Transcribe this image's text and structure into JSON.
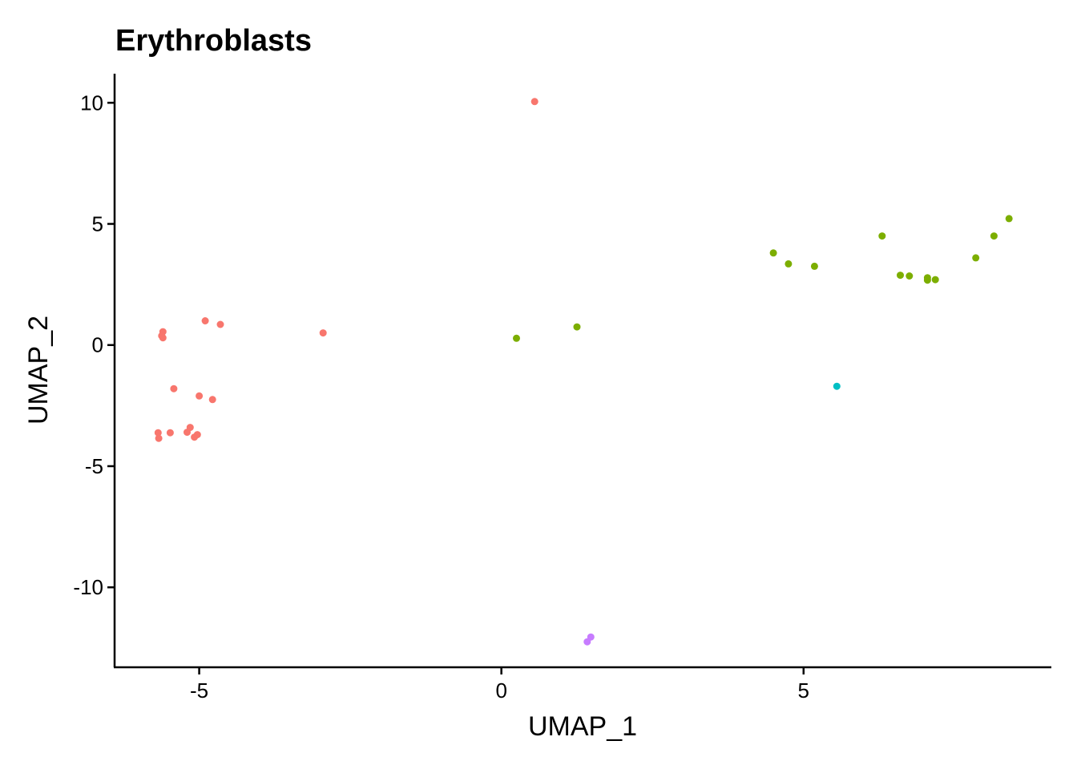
{
  "chart_data": {
    "type": "scatter",
    "title": "Erythroblasts",
    "xlabel": "UMAP_1",
    "ylabel": "UMAP_2",
    "xlim": [
      -6.4,
      9.1
    ],
    "ylim": [
      -13.3,
      11.2
    ],
    "x_ticks": [
      -5,
      0,
      5
    ],
    "x_tick_labels": [
      "-5",
      "0",
      "5"
    ],
    "y_ticks": [
      -10,
      -5,
      0,
      5,
      10
    ],
    "y_tick_labels": [
      "-10",
      "-5",
      "0",
      "5",
      "10"
    ],
    "grid": false,
    "legend": "none",
    "series": [
      {
        "color": "#F8766D",
        "points": [
          [
            0.55,
            10.05
          ],
          [
            -2.95,
            0.5
          ],
          [
            -4.9,
            1.0
          ],
          [
            -4.65,
            0.85
          ],
          [
            -5.6,
            0.55
          ],
          [
            -5.62,
            0.38
          ],
          [
            -5.6,
            0.3
          ],
          [
            -5.42,
            -1.8
          ],
          [
            -5.0,
            -2.1
          ],
          [
            -4.78,
            -2.25
          ],
          [
            -5.15,
            -3.4
          ],
          [
            -5.2,
            -3.6
          ],
          [
            -5.48,
            -3.62
          ],
          [
            -5.68,
            -3.62
          ],
          [
            -5.67,
            -3.85
          ],
          [
            -5.03,
            -3.7
          ],
          [
            -5.08,
            -3.8
          ]
        ]
      },
      {
        "color": "#7CAE00",
        "points": [
          [
            0.25,
            0.28
          ],
          [
            1.25,
            0.75
          ],
          [
            4.5,
            3.8
          ],
          [
            4.75,
            3.35
          ],
          [
            5.18,
            3.25
          ],
          [
            6.3,
            4.5
          ],
          [
            6.6,
            2.88
          ],
          [
            6.75,
            2.85
          ],
          [
            7.05,
            2.78
          ],
          [
            7.05,
            2.68
          ],
          [
            7.18,
            2.7
          ],
          [
            7.85,
            3.6
          ],
          [
            8.15,
            4.5
          ],
          [
            8.4,
            5.22
          ]
        ]
      },
      {
        "color": "#00BFC4",
        "points": [
          [
            5.55,
            -1.7
          ]
        ]
      },
      {
        "color": "#C77CFF",
        "points": [
          [
            1.48,
            -12.05
          ],
          [
            1.42,
            -12.25
          ]
        ]
      }
    ]
  }
}
